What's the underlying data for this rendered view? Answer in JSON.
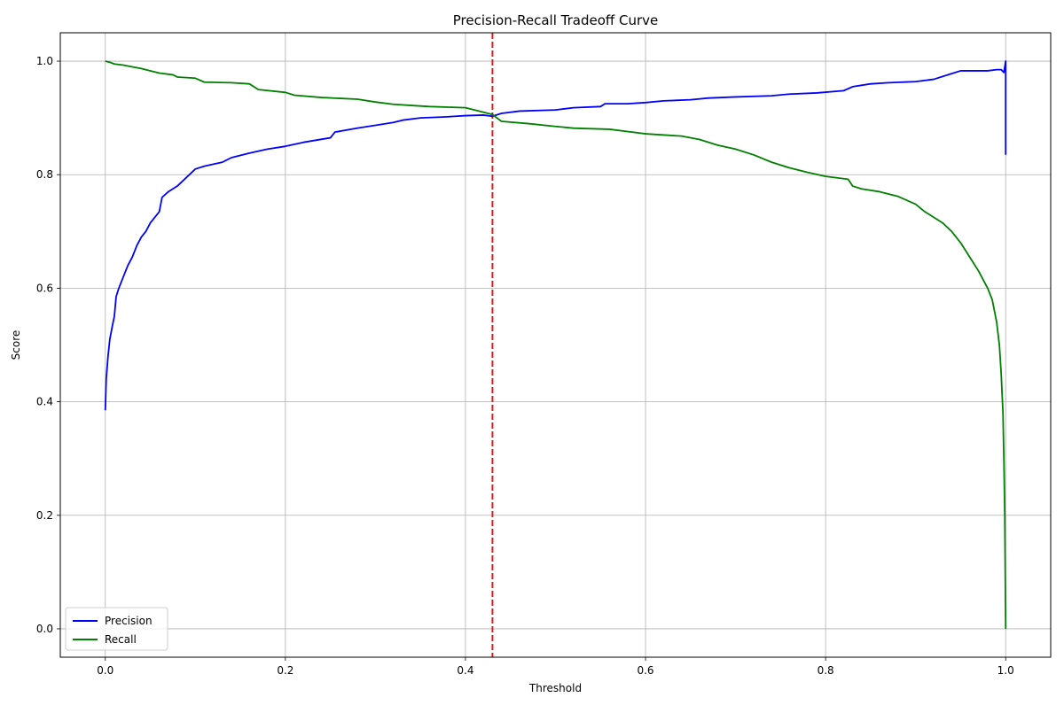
{
  "chart_data": {
    "type": "line",
    "title": "Precision-Recall Tradeoff Curve",
    "xlabel": "Threshold",
    "ylabel": "Score",
    "xlim": [
      -0.05,
      1.05
    ],
    "ylim": [
      -0.05,
      1.05
    ],
    "xticks": [
      0.0,
      0.2,
      0.4,
      0.6,
      0.8,
      1.0
    ],
    "xtick_labels": [
      "0.0",
      "0.2",
      "0.4",
      "0.6",
      "0.8",
      "1.0"
    ],
    "yticks": [
      0.0,
      0.2,
      0.4,
      0.6,
      0.8,
      1.0
    ],
    "ytick_labels": [
      "0.0",
      "0.2",
      "0.4",
      "0.6",
      "0.8",
      "1.0"
    ],
    "grid": true,
    "legend_position": "lower-left",
    "threshold_line": {
      "x": 0.43,
      "color": "#e41a1c",
      "style": "dashed"
    },
    "series": [
      {
        "name": "Precision",
        "color": "#0000ff",
        "points": [
          [
            0.0,
            0.385
          ],
          [
            0.001,
            0.44
          ],
          [
            0.003,
            0.48
          ],
          [
            0.005,
            0.51
          ],
          [
            0.008,
            0.535
          ],
          [
            0.01,
            0.55
          ],
          [
            0.012,
            0.585
          ],
          [
            0.015,
            0.6
          ],
          [
            0.02,
            0.62
          ],
          [
            0.025,
            0.64
          ],
          [
            0.03,
            0.655
          ],
          [
            0.035,
            0.675
          ],
          [
            0.04,
            0.69
          ],
          [
            0.045,
            0.7
          ],
          [
            0.05,
            0.715
          ],
          [
            0.055,
            0.725
          ],
          [
            0.06,
            0.735
          ],
          [
            0.063,
            0.76
          ],
          [
            0.07,
            0.77
          ],
          [
            0.08,
            0.78
          ],
          [
            0.09,
            0.795
          ],
          [
            0.1,
            0.81
          ],
          [
            0.11,
            0.815
          ],
          [
            0.13,
            0.822
          ],
          [
            0.14,
            0.83
          ],
          [
            0.16,
            0.838
          ],
          [
            0.18,
            0.845
          ],
          [
            0.2,
            0.85
          ],
          [
            0.22,
            0.857
          ],
          [
            0.25,
            0.865
          ],
          [
            0.255,
            0.875
          ],
          [
            0.28,
            0.882
          ],
          [
            0.3,
            0.887
          ],
          [
            0.32,
            0.892
          ],
          [
            0.33,
            0.896
          ],
          [
            0.35,
            0.9
          ],
          [
            0.38,
            0.902
          ],
          [
            0.4,
            0.904
          ],
          [
            0.42,
            0.905
          ],
          [
            0.43,
            0.903
          ],
          [
            0.44,
            0.908
          ],
          [
            0.46,
            0.912
          ],
          [
            0.5,
            0.914
          ],
          [
            0.52,
            0.918
          ],
          [
            0.55,
            0.92
          ],
          [
            0.555,
            0.925
          ],
          [
            0.58,
            0.925
          ],
          [
            0.6,
            0.927
          ],
          [
            0.62,
            0.93
          ],
          [
            0.65,
            0.932
          ],
          [
            0.67,
            0.935
          ],
          [
            0.7,
            0.937
          ],
          [
            0.74,
            0.939
          ],
          [
            0.76,
            0.942
          ],
          [
            0.79,
            0.944
          ],
          [
            0.82,
            0.948
          ],
          [
            0.83,
            0.955
          ],
          [
            0.85,
            0.96
          ],
          [
            0.87,
            0.962
          ],
          [
            0.9,
            0.964
          ],
          [
            0.92,
            0.968
          ],
          [
            0.94,
            0.978
          ],
          [
            0.95,
            0.983
          ],
          [
            0.98,
            0.983
          ],
          [
            0.99,
            0.985
          ],
          [
            0.995,
            0.985
          ],
          [
            0.998,
            0.98
          ],
          [
            1.0,
            1.0
          ],
          [
            1.0,
            0.835
          ]
        ]
      },
      {
        "name": "Recall",
        "color": "#008000",
        "points": [
          [
            0.0,
            1.0
          ],
          [
            0.005,
            0.998
          ],
          [
            0.01,
            0.995
          ],
          [
            0.02,
            0.993
          ],
          [
            0.03,
            0.99
          ],
          [
            0.04,
            0.987
          ],
          [
            0.05,
            0.983
          ],
          [
            0.06,
            0.979
          ],
          [
            0.075,
            0.976
          ],
          [
            0.08,
            0.972
          ],
          [
            0.1,
            0.97
          ],
          [
            0.11,
            0.963
          ],
          [
            0.14,
            0.962
          ],
          [
            0.16,
            0.96
          ],
          [
            0.17,
            0.95
          ],
          [
            0.2,
            0.945
          ],
          [
            0.21,
            0.94
          ],
          [
            0.24,
            0.936
          ],
          [
            0.28,
            0.933
          ],
          [
            0.3,
            0.928
          ],
          [
            0.32,
            0.924
          ],
          [
            0.34,
            0.922
          ],
          [
            0.36,
            0.92
          ],
          [
            0.4,
            0.918
          ],
          [
            0.41,
            0.914
          ],
          [
            0.43,
            0.906
          ],
          [
            0.44,
            0.894
          ],
          [
            0.47,
            0.89
          ],
          [
            0.5,
            0.885
          ],
          [
            0.52,
            0.882
          ],
          [
            0.56,
            0.88
          ],
          [
            0.58,
            0.876
          ],
          [
            0.6,
            0.872
          ],
          [
            0.64,
            0.868
          ],
          [
            0.66,
            0.862
          ],
          [
            0.68,
            0.852
          ],
          [
            0.7,
            0.845
          ],
          [
            0.72,
            0.835
          ],
          [
            0.74,
            0.822
          ],
          [
            0.76,
            0.812
          ],
          [
            0.78,
            0.804
          ],
          [
            0.8,
            0.797
          ],
          [
            0.825,
            0.792
          ],
          [
            0.83,
            0.78
          ],
          [
            0.84,
            0.775
          ],
          [
            0.86,
            0.77
          ],
          [
            0.88,
            0.762
          ],
          [
            0.9,
            0.748
          ],
          [
            0.91,
            0.735
          ],
          [
            0.92,
            0.725
          ],
          [
            0.93,
            0.715
          ],
          [
            0.94,
            0.7
          ],
          [
            0.95,
            0.68
          ],
          [
            0.96,
            0.655
          ],
          [
            0.97,
            0.63
          ],
          [
            0.98,
            0.6
          ],
          [
            0.985,
            0.58
          ],
          [
            0.99,
            0.54
          ],
          [
            0.993,
            0.5
          ],
          [
            0.995,
            0.45
          ],
          [
            0.997,
            0.38
          ],
          [
            0.998,
            0.3
          ],
          [
            0.999,
            0.2
          ],
          [
            1.0,
            0.0
          ]
        ]
      }
    ]
  }
}
